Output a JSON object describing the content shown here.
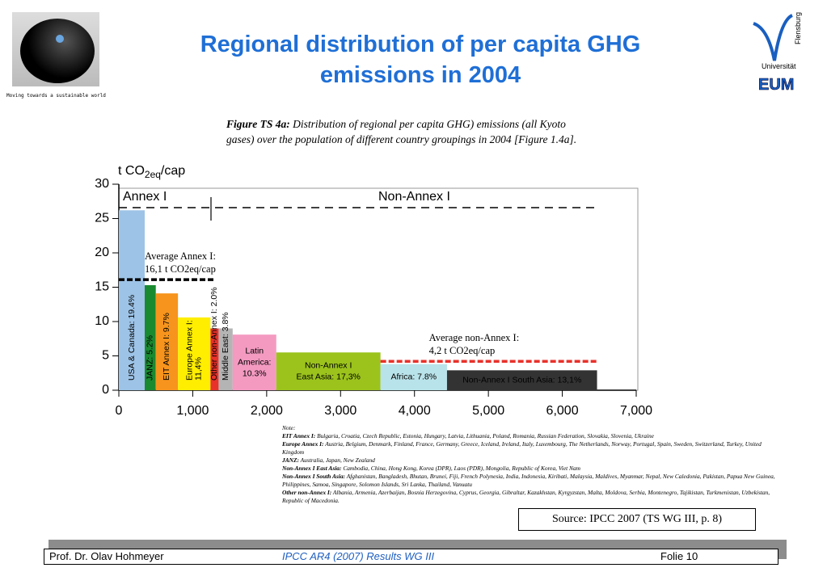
{
  "header": {
    "title_lines": [
      "Regional distribution of per capita GHG",
      "emissions  in 2004"
    ],
    "tagline": "Moving towards a sustainable world",
    "logo_lines": [
      "Universität",
      "Flensburg",
      "EUM"
    ]
  },
  "caption": {
    "lead": "Figure TS 4a:",
    "text": "Distribution of regional per capita GHG) emissions (all Kyoto gases) over the population of different country groupings in 2004 [Figure 1.4a]."
  },
  "chart_data": {
    "type": "bar",
    "y_label_parts": [
      "t CO",
      "2eq",
      "/cap"
    ],
    "group_labels": [
      "Annex I",
      "Non-Annex I"
    ],
    "labels": [
      [
        "USA & Canada: 19.4%"
      ],
      [
        "JANZ: 5.2%"
      ],
      [
        "EIT Annex I: 9.7%"
      ],
      [
        "Europe Annex I:",
        "11,4%"
      ],
      [
        "Other non-Annex I: 2.0%"
      ],
      [
        "Middle East: 3.8%"
      ],
      [
        "Latin",
        "America:",
        "10.3%"
      ],
      [
        "Non-Annex I",
        "East Asia: 17,3%"
      ],
      [
        "Africa: 7.8%"
      ],
      [
        "Non-Annex I South Asia: 13,1%"
      ]
    ],
    "bins": [
      0,
      350,
      500,
      800,
      1240,
      1350,
      1540,
      2130,
      3540,
      4440,
      6470
    ],
    "values": [
      26.2,
      15.3,
      14.1,
      10.6,
      9,
      9,
      8.1,
      5.5,
      3.8,
      2.9
    ],
    "colors": [
      "#9dc3e6",
      "#1a8a30",
      "#f7941d",
      "#ffee00",
      "#e8312a",
      "#b4b4b4",
      "#f49ac1",
      "#9bc31c",
      "#b9e3ea",
      "#333333"
    ],
    "averages": [
      {
        "lines": [
          "Average Annex I:",
          "16,1 t CO2eq/cap"
        ],
        "value": 16.1,
        "x_range": [
          0,
          1280
        ],
        "color": "#000000"
      },
      {
        "lines": [
          "Average non-Annex I:",
          "4,2 t CO2eq/cap"
        ],
        "value": 4.2,
        "x_range": [
          3540,
          6470
        ],
        "color": "#e8312a"
      }
    ],
    "xlim": [
      0,
      7000
    ],
    "ylim": [
      0,
      30
    ],
    "xticks": [
      0,
      {
        "value": 1000,
        "label": "1,000"
      },
      {
        "value": 2000,
        "label": "2,000"
      },
      {
        "value": 3000,
        "label": "3,000"
      },
      {
        "value": 4000,
        "label": "4,000"
      },
      {
        "value": 5000,
        "label": "5,000"
      },
      {
        "value": 6000,
        "label": "6,000"
      },
      {
        "value": 7000,
        "label": "7,000"
      }
    ],
    "yticks": [
      0,
      5,
      10,
      15,
      20,
      25,
      30
    ]
  },
  "notes": {
    "title": "Note:",
    "items": [
      {
        "head": "EIT Annex I:",
        "text": "Bulgaria, Croatia, Czech Republic, Estonia, Hungary, Latvia, Lithuania, Poland, Romania, Russian Federation, Slovakia, Slovenia, Ukraine"
      },
      {
        "head": "Europe Annex I:",
        "text": "Austria, Belgium, Denmark, Finland, France, Germany, Greece, Iceland, Ireland, Italy, Luxembourg, The Netherlands, Norway, Portugal, Spain, Sweden, Switzerland, Turkey, United Kingdom"
      },
      {
        "head": "JANZ:",
        "text": "Australia, Japan, New Zealand"
      },
      {
        "head": "Non-Annex I East Asia:",
        "text": "Cambodia, China, Hong Kong, Korea (DPR), Laos (PDR), Mongolia, Republic of Korea, Viet Nam"
      },
      {
        "head": "Non-Annex I South Asia:",
        "text": "Afghanistan, Bangladesh, Bhutan, Brunei, Fiji, French Polynesia, India, Indonesia, Kiribati, Malaysia, Maldives, Myanmar, Nepal, New Caledonia, Pakistan, Papua New Guinea, Philippines, Samoa, Singapore, Solomon Islands, Sri Lanka, Thailand, Vanuatu"
      },
      {
        "head": "Other non-Annex I:",
        "text": "Albania, Armenia, Azerbaijan, Bosnia Herzegovina, Cyprus, Georgia, Gibraltar, Kazakhstan, Kyrgyzstan, Malta, Moldova, Serbia, Montenegro, Tajikistan, Turkmenistan, Uzbekistan, Republic of Macedonia."
      }
    ]
  },
  "source": "Source: IPCC 2007 (TS WG III, p. 8)",
  "footer": {
    "author": "Prof. Dr. Olav Hohmeyer",
    "center": "IPCC AR4 (2007) Results WG III",
    "page": "Folie 10"
  }
}
